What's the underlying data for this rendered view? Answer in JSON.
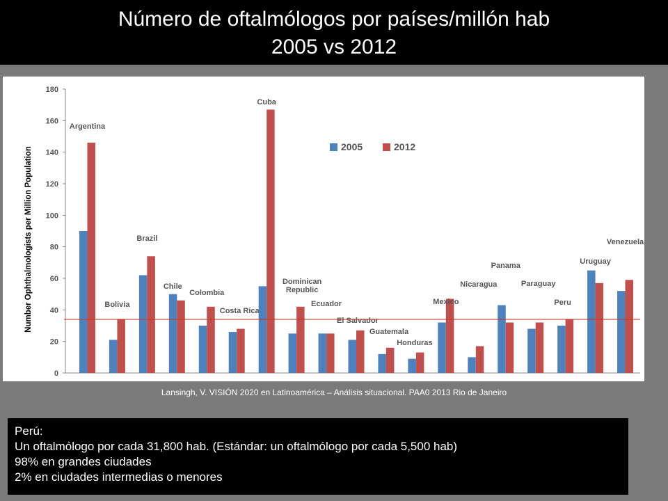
{
  "slide": {
    "title_line1": "Número de oftalmólogos  por  países/millón hab",
    "title_line2": "2005 vs 2012",
    "source": "Lansingh, V. VISIÓN 2020 en Latinoamérica – Análisis situacional. PAA0 2013 Rio de Janeiro",
    "note_lines": [
      "Perú:",
      "Un oftalmólogo por cada 31,800 hab. (Estándar: un oftalmólogo por cada 5,500 hab)",
      "98% en grandes  ciudades",
      "2% en ciudades intermedias o menores"
    ]
  },
  "colors": {
    "series_2005": "#4f81bd",
    "series_2012": "#c0504d",
    "reference_line": "#c0392b",
    "title_band": "#000000",
    "background": "#7a7a7a"
  },
  "chart_data": {
    "type": "bar",
    "title": "",
    "xlabel": "",
    "ylabel": "Number Ophthalmologists per Million Population",
    "ylim": [
      0,
      180
    ],
    "yticks": [
      0,
      20,
      40,
      60,
      80,
      100,
      120,
      140,
      160,
      180
    ],
    "grid": false,
    "legend_position": "upper-right",
    "categories": [
      "Argentina",
      "Bolivia",
      "Brazil",
      "Chile",
      "Colombia",
      "Costa Rica",
      "Cuba",
      "Dominican Republic",
      "Ecuador",
      "El Salvador",
      "Guatemala",
      "Honduras",
      "Mexico",
      "Nicaragua",
      "Panama",
      "Paraguay",
      "Peru",
      "Uruguay",
      "Venezuela"
    ],
    "series": [
      {
        "name": "2005",
        "values": [
          90,
          21,
          62,
          50,
          30,
          26,
          55,
          25,
          25,
          21,
          12,
          9,
          32,
          10,
          43,
          28,
          30,
          65,
          52
        ]
      },
      {
        "name": "2012",
        "values": [
          146,
          34,
          74,
          46,
          42,
          28,
          167,
          42,
          25,
          27,
          16,
          13,
          47,
          17,
          32,
          32,
          34,
          57,
          59
        ]
      }
    ],
    "reference_line": 34
  }
}
